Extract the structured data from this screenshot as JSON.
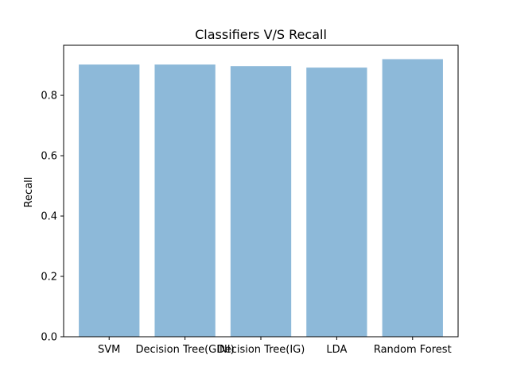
{
  "chart_data": {
    "type": "bar",
    "title": "Classifiers V/S Recall",
    "xlabel": "",
    "ylabel": "Recall",
    "categories": [
      "SVM",
      "Decision Tree(GINI)",
      "Decision Tree(IG)",
      "LDA",
      "Random Forest"
    ],
    "values": [
      0.902,
      0.902,
      0.897,
      0.892,
      0.92
    ],
    "ylim": [
      0,
      0.966
    ],
    "yticks": [
      "0.0",
      "0.2",
      "0.4",
      "0.6",
      "0.8"
    ],
    "grid": false,
    "bar_color": "#8db9d9",
    "axis_color": "#000000"
  }
}
